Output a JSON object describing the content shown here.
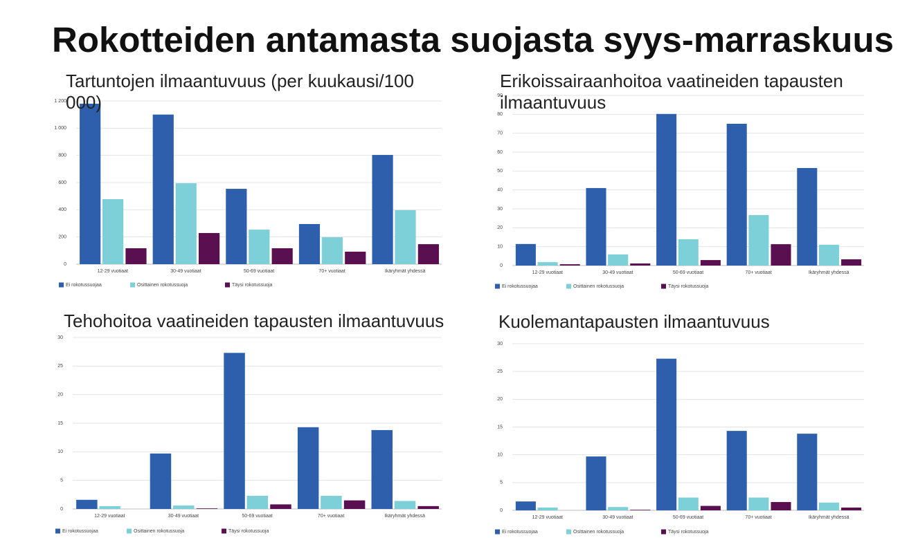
{
  "title": "Rokotteiden antamasta suojasta syys-marraskuus",
  "chart_data": [
    {
      "type": "bar",
      "title": "Tartuntojen ilmaantuvuus (per kuukausi/100 000)",
      "categories": [
        "12-29 vuotiaat",
        "30-49 vuotiaat",
        "50-69 vuotiaat",
        "70+ vuotiaat",
        "Ikäryhmät yhdessä"
      ],
      "series": [
        {
          "name": "Ei rokotussuojaa",
          "color": "#2e5fac",
          "values": [
            1180,
            1100,
            554,
            295,
            803
          ]
        },
        {
          "name": "Osittainen rokotussuoja",
          "color": "#7dd0d8",
          "values": [
            478,
            595,
            254,
            198,
            397
          ]
        },
        {
          "name": "Täysi rokotussuoja",
          "color": "#5a1050",
          "values": [
            117,
            229,
            117,
            92,
            147
          ]
        }
      ],
      "ylim": [
        0,
        1200
      ],
      "yticks": [
        0,
        200,
        400,
        600,
        800,
        {
          "value": 1000,
          "label": "1 000"
        },
        {
          "value": 1200,
          "label": "1 200"
        }
      ],
      "grid": true
    },
    {
      "type": "bar",
      "title": "Erikoissairaanhoitoa vaatineiden tapausten ilmaantuvuus",
      "categories": [
        "12-29 vuotiaat",
        "30-49 vuotiaat",
        "50-69 vuotiaat",
        "70+ vuotiaat",
        "Ikäryhmät yhdessä"
      ],
      "series": [
        {
          "name": "Ei rokotussuojaa",
          "color": "#2e5fac",
          "values": [
            11.4,
            41,
            80.2,
            75,
            51.6
          ]
        },
        {
          "name": "Osittainen rokotussuoja",
          "color": "#7dd0d8",
          "values": [
            1.8,
            5.9,
            13.9,
            26.7,
            11
          ]
        },
        {
          "name": "Täysi rokotussuoja",
          "color": "#5a1050",
          "values": [
            0.7,
            1.1,
            2.9,
            11.3,
            3.3
          ]
        }
      ],
      "ylim": [
        0,
        90
      ],
      "yticks": [
        0,
        10,
        20,
        30,
        40,
        50,
        60,
        70,
        80,
        90
      ],
      "grid": true
    },
    {
      "type": "bar",
      "title": "Tehohoitoa vaatineiden tapausten ilmaantuvuus",
      "categories": [
        "12-29 vuotiaat",
        "30-49 vuotiaat",
        "50-69 vuotiaat",
        "70+ vuotiaat",
        "Ikäryhmät yhdessä"
      ],
      "series": [
        {
          "name": "Ei rokotussuojaa",
          "color": "#2e5fac",
          "values": [
            1.6,
            9.7,
            27.3,
            14.3,
            13.8
          ]
        },
        {
          "name": "Osittainen rokotussuoja",
          "color": "#7dd0d8",
          "values": [
            0.5,
            0.6,
            2.3,
            2.3,
            1.4
          ]
        },
        {
          "name": "Täysi rokotussuoja",
          "color": "#5a1050",
          "values": [
            0,
            0.1,
            0.8,
            1.5,
            0.5
          ]
        }
      ],
      "ylim": [
        0,
        30
      ],
      "yticks": [
        0,
        5,
        10,
        15,
        20,
        25,
        30
      ],
      "grid": true
    },
    {
      "type": "bar",
      "title": "Kuolemantapausten ilmaantuvuus",
      "categories": [
        "12-29 vuotiaat",
        "30-49 vuotiaat",
        "50-69 vuotiaat",
        "70+ vuotiaat",
        "Ikäryhmät yhdessä"
      ],
      "series": [
        {
          "name": "Ei rokotussuojaa",
          "color": "#2e5fac",
          "values": [
            1.6,
            9.7,
            27.3,
            14.3,
            13.8
          ]
        },
        {
          "name": "Osittainen rokotussuoja",
          "color": "#7dd0d8",
          "values": [
            0.5,
            0.6,
            2.3,
            2.3,
            1.4
          ]
        },
        {
          "name": "Täysi rokotussuoja",
          "color": "#5a1050",
          "values": [
            0,
            0.1,
            0.8,
            1.5,
            0.5
          ]
        }
      ],
      "ylim": [
        0,
        30
      ],
      "yticks": [
        0,
        5,
        10,
        15,
        20,
        25,
        30
      ],
      "grid": true
    }
  ]
}
